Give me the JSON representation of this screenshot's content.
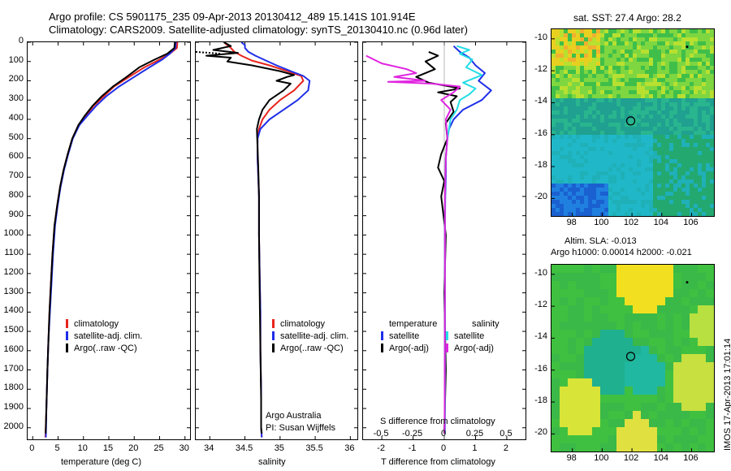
{
  "header": {
    "line1": "Argo profile: CS 5901175_235 09-Apr-2013 20130412_489 15.141S 101.914E",
    "line2": "Climatology: CARS2009. Satellite-adjusted climatology: synTS_20130410.nc (0.96d later)"
  },
  "colors": {
    "climatology": "#e8241c",
    "satellite": "#1f2ee8",
    "argo": "#000000",
    "cyan": "#23dde6",
    "magenta": "#e023e0"
  },
  "depth_axis": {
    "ticks": [
      "0",
      "100",
      "200",
      "300",
      "400",
      "500",
      "600",
      "700",
      "800",
      "900",
      "1000",
      "1100",
      "1200",
      "1300",
      "1400",
      "1500",
      "1600",
      "1700",
      "1800",
      "1900",
      "2000"
    ]
  },
  "chart_data": [
    {
      "type": "line",
      "name": "temperature",
      "xlabel": "temperature (deg C)",
      "xlim": [
        -1,
        31
      ],
      "ylim": [
        0,
        2060
      ],
      "xticks": [
        "0",
        "5",
        "10",
        "15",
        "20",
        "25",
        "30"
      ],
      "xtick_values": [
        0,
        5,
        10,
        15,
        20,
        25,
        30
      ],
      "legend": [
        "climatology",
        "satellite-adj. clim.",
        "Argo(..raw -QC)"
      ],
      "series": [
        {
          "name": "climatology",
          "color": "climatology",
          "x": [
            28.5,
            28.4,
            27,
            25,
            22,
            19,
            16,
            14,
            12,
            10.5,
            9,
            7.8,
            6.9,
            6.1,
            5.4,
            4.8,
            4.3,
            3.9,
            3.6,
            3.3,
            3.1,
            2.9,
            2.7,
            2.5
          ],
          "y": [
            0,
            30,
            60,
            90,
            130,
            180,
            230,
            280,
            330,
            380,
            430,
            500,
            580,
            660,
            750,
            850,
            950,
            1100,
            1250,
            1400,
            1550,
            1700,
            1900,
            2050
          ]
        },
        {
          "name": "satellite",
          "color": "satellite",
          "x": [
            28.2,
            28.1,
            27,
            25.5,
            23,
            20,
            17,
            14.5,
            12.5,
            10.8,
            9.2,
            7.9,
            7,
            6.2,
            5.5,
            4.9,
            4.4,
            4,
            3.7,
            3.4,
            3.1,
            2.9,
            2.7,
            2.6
          ],
          "y": [
            0,
            30,
            60,
            90,
            130,
            180,
            230,
            280,
            330,
            380,
            430,
            500,
            580,
            660,
            750,
            850,
            950,
            1100,
            1250,
            1400,
            1550,
            1700,
            1900,
            2050
          ]
        },
        {
          "name": "argo",
          "color": "argo",
          "x": [
            28.0,
            27.9,
            26.5,
            24,
            21,
            18.5,
            15.8,
            13.6,
            11.8,
            10.3,
            9,
            7.8,
            6.9,
            6.1,
            5.4,
            4.8,
            4.3,
            3.9,
            3.6,
            3.3,
            3.1,
            2.9,
            2.7,
            2.55
          ],
          "y": [
            0,
            30,
            60,
            90,
            130,
            180,
            230,
            280,
            330,
            380,
            430,
            500,
            580,
            660,
            750,
            850,
            950,
            1100,
            1250,
            1400,
            1550,
            1700,
            1900,
            2030
          ]
        }
      ]
    },
    {
      "type": "line",
      "name": "salinity",
      "xlabel": "salinity",
      "xlim": [
        33.8,
        36.1
      ],
      "ylim": [
        0,
        2060
      ],
      "xticks": [
        "34",
        "34.5",
        "35",
        "35.5",
        "36"
      ],
      "xtick_values": [
        34,
        34.5,
        35,
        35.5,
        36
      ],
      "legend": [
        "climatology",
        "satellite-adj. clim.",
        "Argo(..raw -QC)"
      ],
      "annotation": [
        "Argo Australia",
        "PI: Susan Wijffels"
      ],
      "series": [
        {
          "name": "climatology",
          "color": "climatology",
          "x": [
            34.2,
            34.25,
            34.3,
            34.35,
            34.45,
            34.6,
            34.85,
            35.1,
            35.3,
            35.33,
            35.2,
            35.0,
            34.85,
            34.75,
            34.7,
            34.68,
            34.68,
            34.69,
            34.7,
            34.7,
            34.71,
            34.72,
            34.72,
            34.73,
            34.73,
            34.74
          ],
          "y": [
            0,
            15,
            30,
            50,
            70,
            95,
            120,
            150,
            175,
            200,
            250,
            300,
            350,
            400,
            450,
            500,
            600,
            700,
            800,
            1000,
            1200,
            1400,
            1600,
            1800,
            2000,
            2050
          ]
        },
        {
          "name": "satellite",
          "color": "satellite",
          "x": [
            34.45,
            34.5,
            34.5,
            34.55,
            34.65,
            34.8,
            34.95,
            35.15,
            35.33,
            35.42,
            35.4,
            35.25,
            35.05,
            34.85,
            34.72,
            34.68,
            34.68,
            34.69,
            34.7,
            34.7,
            34.71,
            34.72,
            34.72,
            34.73,
            34.73,
            34.74
          ],
          "y": [
            0,
            15,
            30,
            50,
            70,
            95,
            120,
            150,
            175,
            200,
            250,
            300,
            350,
            400,
            450,
            500,
            600,
            700,
            800,
            1000,
            1200,
            1400,
            1600,
            1800,
            2000,
            2050
          ]
        },
        {
          "name": "argo",
          "color": "argo",
          "x": [
            34.2,
            34.3,
            34.05,
            34.4,
            33.95,
            34.3,
            34.25,
            34.6,
            35.0,
            35.2,
            35.1,
            34.95,
            35.15,
            35.05,
            34.85,
            34.75,
            34.7,
            34.67,
            34.68,
            34.69,
            34.7,
            34.7,
            34.71,
            34.72,
            34.73,
            34.73,
            34.74
          ],
          "y": [
            0,
            20,
            40,
            55,
            70,
            80,
            100,
            120,
            150,
            170,
            180,
            200,
            215,
            250,
            300,
            350,
            400,
            450,
            550,
            650,
            800,
            1000,
            1300,
            1600,
            1850,
            2000,
            2030
          ]
        },
        {
          "name": "argo-surface",
          "color": "argo",
          "dashed": true,
          "x": [
            33.8,
            34.0,
            34.15
          ],
          "y": [
            50,
            55,
            60
          ]
        }
      ]
    },
    {
      "type": "line",
      "name": "differences",
      "xlabel": "T difference from climatology",
      "xlabel2": "S difference from climatology",
      "xlim": [
        -2.6,
        2.6
      ],
      "ylim": [
        0,
        2060
      ],
      "xticks": [
        "-2",
        "-1",
        "0",
        "1",
        "2"
      ],
      "xtick_values": [
        -2,
        -1,
        0,
        1,
        2
      ],
      "xticks_s": [
        "-0.5",
        "-0.25",
        "0",
        "0.25",
        "0.5"
      ],
      "xtick_s_values": [
        -2,
        -1,
        0,
        1,
        2
      ],
      "legend_headers": [
        "temperature",
        "salinity"
      ],
      "legend": [
        "satellite",
        "Argo(-adj)",
        "satellite",
        "Argo(-adj)"
      ],
      "series": [
        {
          "name": "temp-satellite",
          "color": "satellite",
          "x": [
            0.3,
            0.5,
            0.8,
            1.0,
            1.3,
            1.1,
            1.5,
            1.2,
            0.6,
            0.3,
            0.15,
            0.1,
            0.05,
            0.05,
            0.03,
            0.02,
            0.02,
            0.02,
            0.02
          ],
          "y": [
            20,
            50,
            80,
            120,
            160,
            200,
            250,
            300,
            350,
            400,
            450,
            500,
            600,
            700,
            800,
            1000,
            1300,
            1700,
            2030
          ]
        },
        {
          "name": "temp-argo",
          "color": "argo",
          "x": [
            -0.5,
            -0.2,
            -0.6,
            -0.3,
            -0.9,
            -0.5,
            0.2,
            0.5,
            -0.2,
            0.4,
            0.2,
            0.3,
            0.05,
            0.1,
            -0.1,
            -0.2,
            0,
            -0.1,
            0.05,
            0,
            0.05,
            0
          ],
          "y": [
            50,
            70,
            100,
            140,
            180,
            210,
            230,
            240,
            260,
            280,
            310,
            360,
            420,
            500,
            580,
            650,
            720,
            800,
            1000,
            1300,
            1700,
            2030
          ]
        },
        {
          "name": "sal-satellite",
          "color": "cyan",
          "x": [
            0.4,
            0.8,
            0.5,
            0.9,
            0.7,
            1.2,
            0.6,
            1.0,
            0.8,
            0.5,
            0.4,
            0.2,
            0.15,
            0.1,
            0.05,
            0.03,
            0.02,
            0.02,
            0.02,
            0.02
          ],
          "y": [
            20,
            40,
            60,
            90,
            130,
            170,
            210,
            240,
            270,
            300,
            350,
            400,
            450,
            500,
            600,
            700,
            900,
            1200,
            1600,
            2030
          ]
        },
        {
          "name": "sal-argo",
          "color": "magenta",
          "x": [
            -2.5,
            -2.0,
            -1.2,
            -0.9,
            -1.6,
            -0.6,
            -1.8,
            -0.4,
            0.5,
            0.3,
            -0.1,
            0.2,
            0.05,
            0.1,
            0.05,
            0.02,
            0.02,
            0.01
          ],
          "y": [
            70,
            110,
            140,
            160,
            180,
            200,
            205,
            215,
            230,
            260,
            300,
            350,
            400,
            500,
            600,
            800,
            1300,
            2030
          ]
        }
      ]
    }
  ],
  "sst_map": {
    "title": "sat. SST: 27.4  Argo: 28.2",
    "xticks": [
      "98",
      "100",
      "102",
      "104",
      "106"
    ],
    "yticks": [
      "-10",
      "-12",
      "-14",
      "-16",
      "-18",
      "-20"
    ],
    "marker_lon": 101.914,
    "marker_lat": -15.141
  },
  "sla_map": {
    "title1": "Altim. SLA: -0.013",
    "title2": "Argo h1000: 0.00014 h2000: -0.021",
    "xticks": [
      "98",
      "100",
      "102",
      "104",
      "106"
    ],
    "yticks": [
      "-10",
      "-12",
      "-14",
      "-16",
      "-18",
      "-20"
    ],
    "marker_lon": 101.914,
    "marker_lat": -15.141
  },
  "footer": "IMOS 17-Apr-2013 17:01:14"
}
